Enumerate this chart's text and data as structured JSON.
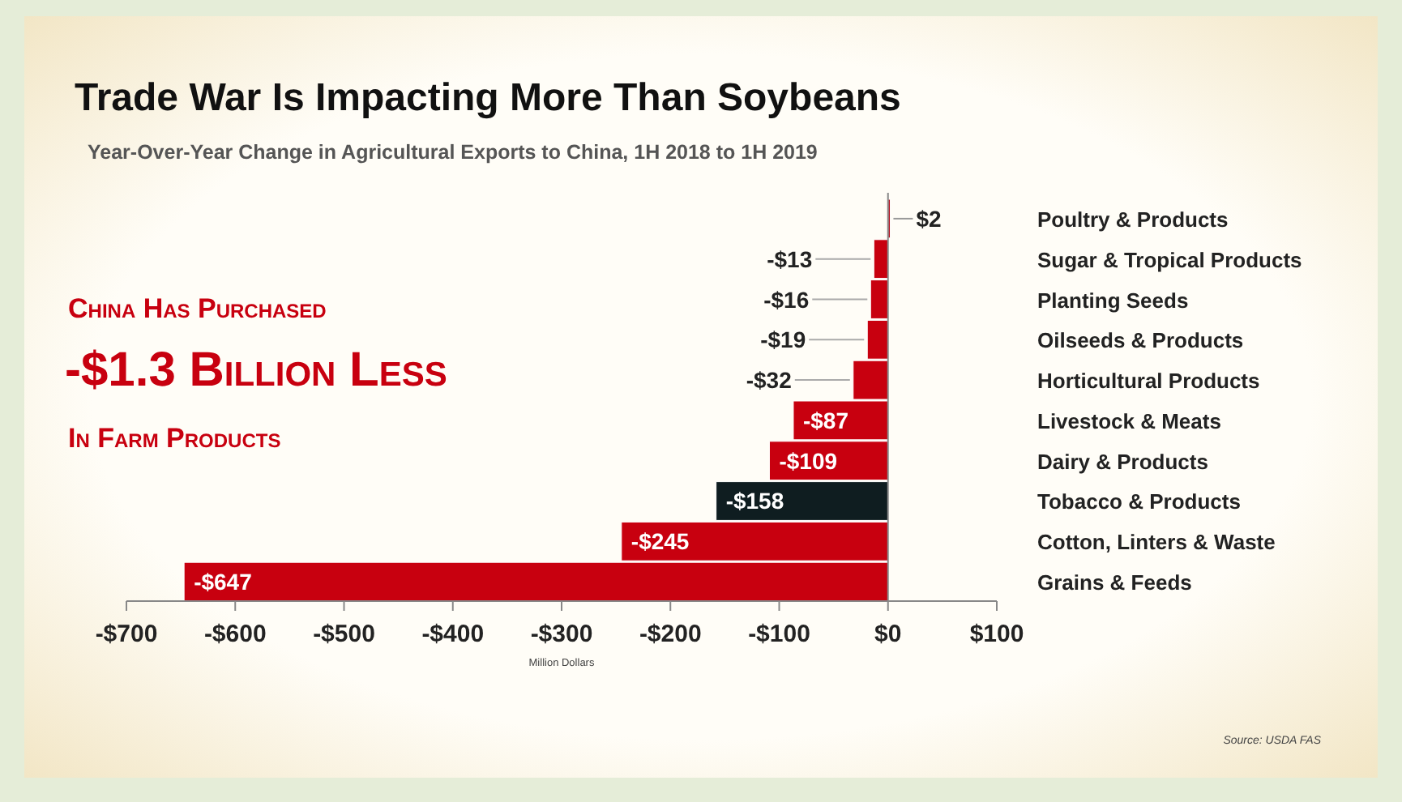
{
  "chart_data": {
    "type": "bar",
    "orientation": "horizontal",
    "title": "Trade War Is Impacting More Than Soybeans",
    "subtitle": "Year-Over-Year Change in Agricultural Exports to China, 1H 2018 to 1H 2019",
    "categories": [
      "Poultry & Products",
      "Sugar & Tropical Products",
      "Planting Seeds",
      "Oilseeds & Products",
      "Horticultural Products",
      "Livestock & Meats",
      "Dairy & Products",
      "Tobacco & Products",
      "Cotton, Linters & Waste",
      "Grains & Feeds"
    ],
    "values": [
      2,
      -13,
      -16,
      -19,
      -32,
      -87,
      -109,
      -158,
      -245,
      -647
    ],
    "colors": [
      "#b00012",
      "#c8000f",
      "#c8000f",
      "#c8000f",
      "#c8000f",
      "#c8000f",
      "#c8000f",
      "#0f1d20",
      "#c8000f",
      "#c8000f"
    ],
    "value_labels": [
      "$2",
      "-$13",
      "-$16",
      "-$19",
      "-$32",
      "-$87",
      "-$109",
      "-$158",
      "-$245",
      "-$647"
    ],
    "xlim": [
      -700,
      100
    ],
    "xticks": [
      {
        "value": -700,
        "label": "-$700"
      },
      {
        "value": -600,
        "label": "-$600"
      },
      {
        "value": -500,
        "label": "-$500"
      },
      {
        "value": -400,
        "label": "-$400"
      },
      {
        "value": -300,
        "label": "-$300"
      },
      {
        "value": -200,
        "label": "-$200"
      },
      {
        "value": -100,
        "label": "-$100"
      },
      {
        "value": 0,
        "label": "$0"
      },
      {
        "value": 100,
        "label": "$100"
      }
    ],
    "xlabel": "Million Dollars",
    "annotations": [
      "China Has Purchased",
      "-$1.3 Billion Less",
      "In Farm Products",
      "Source: USDA FAS"
    ],
    "tick_labels": "x"
  }
}
